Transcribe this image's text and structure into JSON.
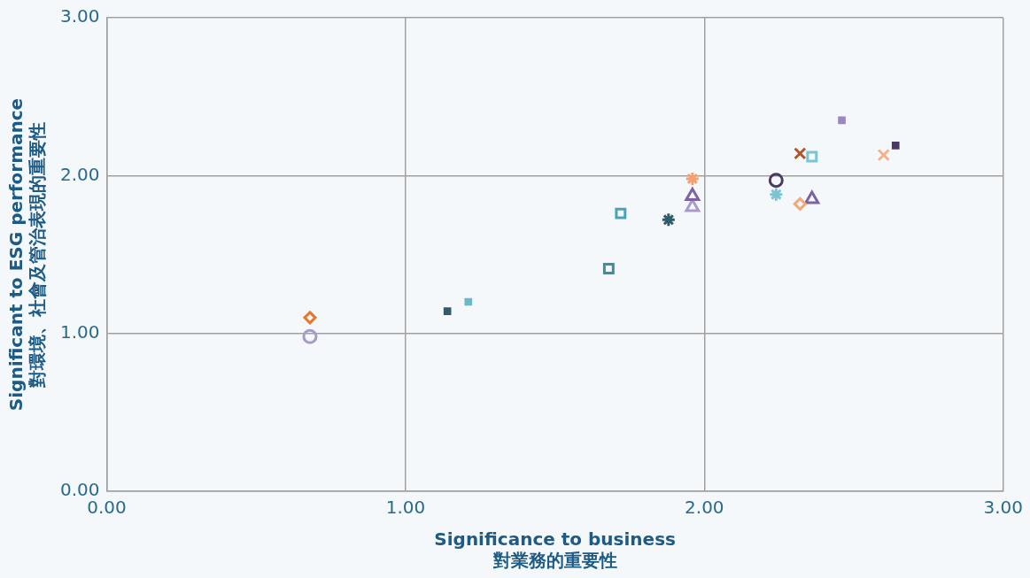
{
  "chart_data": {
    "type": "scatter",
    "xlabel": "Significance to business\n對業務的重要性",
    "ylabel": "Significant to ESG performance\n對環境、社會及管治表現的重要性",
    "xlim": [
      0,
      3
    ],
    "ylim": [
      0,
      3
    ],
    "xticks": [
      {
        "value": 0,
        "label": "0.00"
      },
      {
        "value": 1,
        "label": "1.00"
      },
      {
        "value": 2,
        "label": "2.00"
      },
      {
        "value": 3,
        "label": "3.00"
      }
    ],
    "yticks": [
      {
        "value": 0,
        "label": "0.00"
      },
      {
        "value": 1,
        "label": "1.00"
      },
      {
        "value": 2,
        "label": "2.00"
      },
      {
        "value": 3,
        "label": "3.00"
      }
    ],
    "grid": true,
    "legend": false,
    "series": [
      {
        "color": "#e8762d",
        "marker": "diamond",
        "x": [
          0.68
        ],
        "values": [
          1.1
        ]
      },
      {
        "color": "#a89bc8",
        "marker": "circle",
        "x": [
          0.68
        ],
        "values": [
          0.98
        ]
      },
      {
        "color": "#2f5b6b",
        "x": [
          1.14
        ],
        "values": [
          1.14
        ]
      },
      {
        "color": "#6cb8c6",
        "x": [
          1.21
        ],
        "values": [
          1.2
        ]
      },
      {
        "color": "#3c8fa3",
        "marker": "square",
        "x": [
          1.68
        ],
        "values": [
          1.41
        ]
      },
      {
        "color": "#4aa3b5",
        "marker": "square",
        "x": [
          1.72
        ],
        "values": [
          1.76
        ]
      },
      {
        "color": "#2f5b6b",
        "marker": "cross",
        "x": [
          1.88
        ],
        "values": [
          1.72
        ]
      },
      {
        "color": "#f4a070",
        "marker": "cross",
        "x": [
          1.96
        ],
        "values": [
          1.98
        ]
      },
      {
        "color": "#7a62a3",
        "marker": "triangle",
        "x": [
          1.96
        ],
        "values": [
          1.87
        ]
      },
      {
        "color": "#a89bc8",
        "marker": "triangle",
        "x": [
          1.96
        ],
        "values": [
          1.8
        ]
      },
      {
        "color": "#4a3a63",
        "marker": "circle",
        "x": [
          2.24
        ],
        "values": [
          1.97
        ]
      },
      {
        "color": "#7cc4cf",
        "marker": "cross",
        "x": [
          2.24
        ],
        "values": [
          1.88
        ]
      },
      {
        "color": "#b0552a",
        "marker": "x",
        "x": [
          2.32
        ],
        "values": [
          2.14
        ]
      },
      {
        "color": "#7cc4cf",
        "marker": "square",
        "x": [
          2.36
        ],
        "values": [
          2.12
        ]
      },
      {
        "color": "#f4a878",
        "marker": "diamond",
        "x": [
          2.32
        ],
        "values": [
          1.82
        ]
      },
      {
        "color": "#7a62a3",
        "marker": "triangle",
        "x": [
          2.36
        ],
        "values": [
          1.85
        ]
      },
      {
        "color": "#9a88c0",
        "x": [
          2.46
        ],
        "values": [
          2.35
        ]
      },
      {
        "color": "#f4b08a",
        "marker": "x",
        "x": [
          2.6
        ],
        "values": [
          2.13
        ]
      },
      {
        "color": "#4a3a63",
        "x": [
          2.64
        ],
        "values": [
          2.19
        ]
      }
    ]
  }
}
